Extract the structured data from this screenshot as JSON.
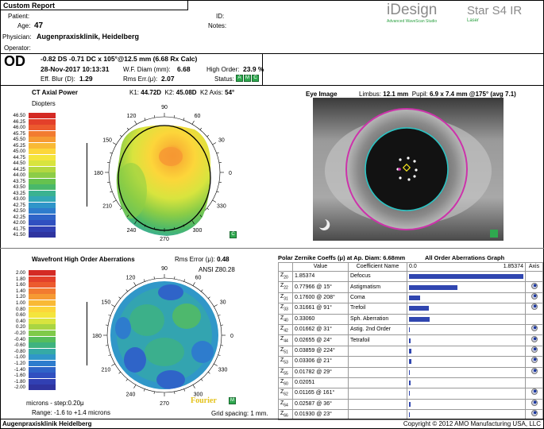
{
  "report": {
    "title": "Custom Report"
  },
  "patient": {
    "patient_label": "Patient:",
    "age_label": "Age:",
    "age": "47",
    "id_label": "ID:",
    "notes_label": "Notes:",
    "physician_label": "Physician:",
    "physician": "Augenpraxisklinik, Heidelberg",
    "operator_label": "Operator:"
  },
  "brand": {
    "name": "iDesign",
    "sub": "Advanced WaveScan Studio",
    "model": "Star S4 IR",
    "model_sub": "Laser"
  },
  "eye": "OD",
  "summary": {
    "rx": "-0.82 DS -0.71 DC x 105°@12.5 mm (6.68 Rx Calc)",
    "date": "28-Nov-2017 10:13:31",
    "wf_label": "W.F. Diam (mm):",
    "wf_value": "6.68",
    "hio_label": "High Order:",
    "hio_value": "23.9 %",
    "blur_label": "Eff. Blur (D):",
    "blur_value": "1.29",
    "rms_label": "Rms Err.(μ):",
    "rms_value": "2.07",
    "status_label": "Status:",
    "status_badges": [
      "A",
      "M",
      "C"
    ]
  },
  "ct": {
    "title": "CT Axial Power",
    "k1_label": "K1:",
    "k1": "44.72D",
    "k2_label": "K2:",
    "k2": "45.08D",
    "axis_label": "K2 Axis:",
    "axis": "54°",
    "unit": "Diopters",
    "scale": [
      "46.50",
      "46.25",
      "46.00",
      "45.75",
      "45.50",
      "45.25",
      "45.00",
      "44.75",
      "44.50",
      "44.25",
      "44.00",
      "43.75",
      "43.50",
      "43.25",
      "43.00",
      "42.75",
      "42.50",
      "42.25",
      "42.00",
      "41.75",
      "41.50"
    ],
    "scale_colors": [
      "#d42a24",
      "#e3402a",
      "#ec5a2e",
      "#f27b30",
      "#f69a33",
      "#f9b935",
      "#fcd63a",
      "#f4e53c",
      "#d8e43e",
      "#b3d840",
      "#8ccd46",
      "#66c24e",
      "#49b86a",
      "#3bb290",
      "#33a8b5",
      "#2f95c9",
      "#2e7ccd",
      "#2f64c8",
      "#3050c0",
      "#3140b3",
      "#2f349f"
    ],
    "angles": [
      "90",
      "60",
      "30",
      "0",
      "330",
      "300",
      "270",
      "240",
      "210",
      "180",
      "150",
      "120"
    ],
    "badge": "C"
  },
  "eyeimage": {
    "title": "Eye Image",
    "limbus_label": "Limbus:",
    "limbus": "12.1 mm",
    "pupil_label": "Pupil:",
    "pupil": "6.9 x 7.4 mm @175° (avg 7.1)"
  },
  "wf": {
    "title": "Wavefront High Order Aberrations",
    "rms_label": "Rms Error (μ):",
    "rms": "0.48",
    "ansi": "ANSI Z80.28",
    "scale": [
      "2.00",
      "1.80",
      "1.60",
      "1.40",
      "1.20",
      "1.00",
      "0.80",
      "0.60",
      "0.40",
      "0.20",
      "-0.20",
      "-0.40",
      "-0.60",
      "-0.80",
      "-1.00",
      "-1.20",
      "-1.40",
      "-1.60",
      "-1.80",
      "-2.00"
    ],
    "scale_colors": [
      "#d42a24",
      "#e3402a",
      "#ec5a2e",
      "#f27b30",
      "#f69a33",
      "#f9b935",
      "#fcd63a",
      "#f4e53c",
      "#d8e43e",
      "#a9d542",
      "#7fca4a",
      "#55bd5c",
      "#3eb37f",
      "#35aaa5",
      "#3097c8",
      "#2e7ccd",
      "#2f64c8",
      "#3050c0",
      "#3140b3",
      "#2f349f"
    ],
    "unit": "microns - step:0.20μ",
    "range": "Range: -1.6 to +1.4 microns",
    "angles": [
      "90",
      "60",
      "30",
      "0",
      "330",
      "300",
      "270",
      "240",
      "210",
      "180",
      "150",
      "120"
    ],
    "fourier": "Fourier",
    "badge": "M",
    "grid": "Grid spacing: 1 mm."
  },
  "zernike": {
    "title": "Polar Zernike Coeffs (μ) at Ap. Diam: 6.68mm",
    "graph_title": "All Order Aberrations Graph",
    "col_value": "Value",
    "col_name": "Coefficient Name",
    "scale_min": "0.0",
    "scale_max": "1.85374",
    "col_axis": "Axis",
    "rows": [
      {
        "z": "Z",
        "sub": "20",
        "value": "1.85374",
        "name": "Defocus",
        "mag": 1.85374,
        "axis": false
      },
      {
        "z": "Z",
        "sub": "22",
        "value": "0.77966 @ 15°",
        "name": "Astigmatism",
        "mag": 0.77966,
        "axis": true
      },
      {
        "z": "Z",
        "sub": "31",
        "value": "0.17600 @ 208°",
        "name": "Coma",
        "mag": 0.176,
        "axis": true
      },
      {
        "z": "Z",
        "sub": "33",
        "value": "0.31661 @ 91°",
        "name": "Trefoil",
        "mag": 0.31661,
        "axis": true
      },
      {
        "z": "Z",
        "sub": "40",
        "value": "0.33060",
        "name": "Sph. Aberration",
        "mag": 0.3306,
        "axis": false
      },
      {
        "z": "Z",
        "sub": "42",
        "value": "0.01662 @ 31°",
        "name": "Astig. 2nd Order",
        "mag": 0.01662,
        "axis": true
      },
      {
        "z": "Z",
        "sub": "44",
        "value": "0.02655 @ 24°",
        "name": "Tetrafoil",
        "mag": 0.02655,
        "axis": true
      },
      {
        "z": "Z",
        "sub": "51",
        "value": "0.03859 @ 224°",
        "name": "",
        "mag": 0.03859,
        "axis": true
      },
      {
        "z": "Z",
        "sub": "53",
        "value": "0.03306 @ 21°",
        "name": "",
        "mag": 0.03306,
        "axis": true
      },
      {
        "z": "Z",
        "sub": "55",
        "value": "0.01782 @ 29°",
        "name": "",
        "mag": 0.01782,
        "axis": true
      },
      {
        "z": "Z",
        "sub": "60",
        "value": "0.02051",
        "name": "",
        "mag": 0.02051,
        "axis": false
      },
      {
        "z": "Z",
        "sub": "62",
        "value": "0.01165 @ 161°",
        "name": "",
        "mag": 0.01165,
        "axis": true
      },
      {
        "z": "Z",
        "sub": "64",
        "value": "0.02587 @ 36°",
        "name": "",
        "mag": 0.02587,
        "axis": true
      },
      {
        "z": "Z",
        "sub": "66",
        "value": "0.01930 @ 23°",
        "name": "",
        "mag": 0.0193,
        "axis": true
      }
    ]
  },
  "footer": {
    "left": "Augenpraxisklinik Heidelberg",
    "right": "Copyright © 2012 AMO Manufacturing USA, LLC"
  },
  "colors": {
    "bar": "#3046b0",
    "limbus": "#cc33aa",
    "pupil": "#2ac4c4",
    "badge": "#2fa84f"
  }
}
